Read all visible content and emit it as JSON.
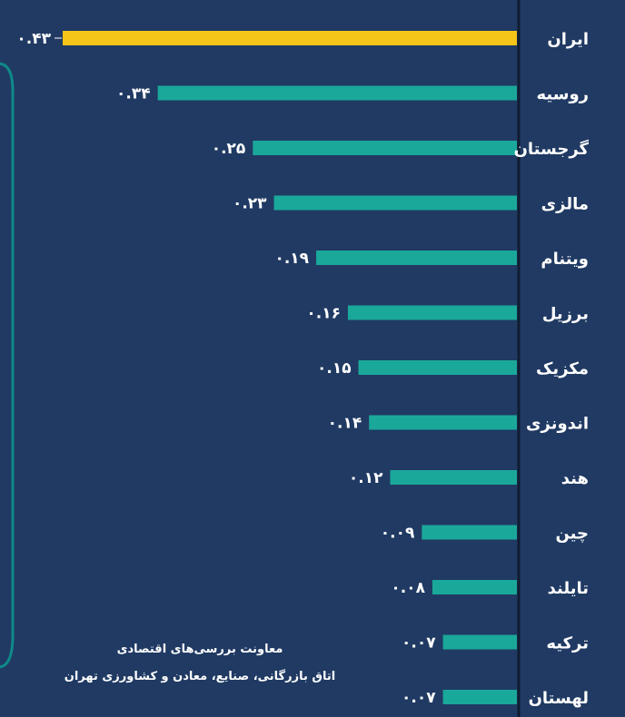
{
  "chart_data": {
    "type": "bar",
    "orientation": "horizontal",
    "categories": [
      "ایران",
      "روسیه",
      "گرجستان",
      "مالزی",
      "ویتنام",
      "برزیل",
      "مکزیک",
      "اندونزی",
      "هند",
      "چین",
      "تایلند",
      "ترکیه",
      "لهستان"
    ],
    "values": [
      0.43,
      0.34,
      0.25,
      0.23,
      0.19,
      0.16,
      0.15,
      0.14,
      0.12,
      0.09,
      0.08,
      0.07,
      0.07
    ],
    "value_labels": [
      "۰.۴۳",
      "۰.۳۴",
      "۰.۲۵",
      "۰.۲۳",
      "۰.۱۹",
      "۰.۱۶",
      "۰.۱۵",
      "۰.۱۴",
      "۰.۱۲",
      "۰.۰۹",
      "۰.۰۸",
      "۰.۰۷",
      "۰.۰۷"
    ],
    "xlim": [
      0,
      0.43
    ],
    "grid": false,
    "legend": "none",
    "colors": {
      "background": "#203a63",
      "highlight": "#f5c518",
      "bar": "#1aa89a",
      "axis": "#101c30",
      "text": "#ffffff",
      "side_panel": "#0f8a88"
    }
  },
  "credit": {
    "line1": "معاونت بررسی‌های اقتصادی",
    "line2": "اتاق بازرگانی، صنایع، معادن و کشاورزی تهران"
  }
}
